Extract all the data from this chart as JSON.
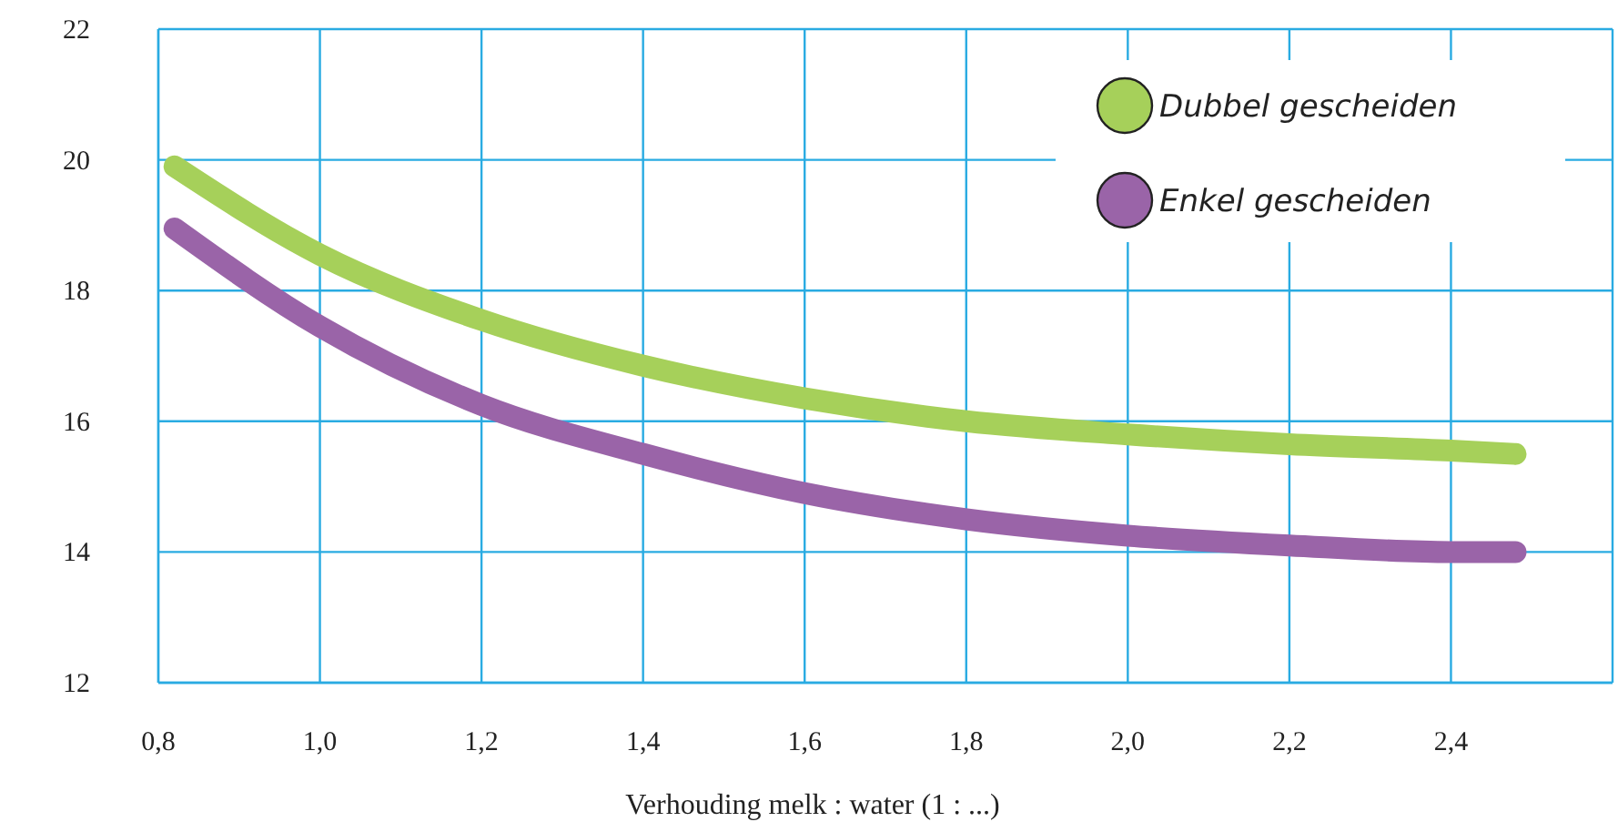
{
  "chart_data": {
    "type": "line",
    "xlabel": "Verhouding melk : water (1 : ...)",
    "xlim": [
      0.8,
      2.6
    ],
    "ylim": [
      12,
      22
    ],
    "xticks": [
      {
        "value": 0.8,
        "label": "0,8"
      },
      {
        "value": 1.0,
        "label": "1,0"
      },
      {
        "value": 1.2,
        "label": "1,2"
      },
      {
        "value": 1.4,
        "label": "1,4"
      },
      {
        "value": 1.6,
        "label": "1,6"
      },
      {
        "value": 1.8,
        "label": "1,8"
      },
      {
        "value": 2.0,
        "label": "2,0"
      },
      {
        "value": 2.2,
        "label": "2,2"
      },
      {
        "value": 2.4,
        "label": "2,4"
      },
      {
        "value": 2.6,
        "label": null
      }
    ],
    "yticks": [
      12,
      14,
      16,
      18,
      20,
      22
    ],
    "x": [
      0.82,
      1.0,
      1.2,
      1.4,
      1.6,
      1.8,
      2.0,
      2.2,
      2.4,
      2.48
    ],
    "series": [
      {
        "name": "Dubbel gescheiden",
        "color": "#a6d05a",
        "values": [
          19.9,
          18.55,
          17.55,
          16.85,
          16.35,
          16.0,
          15.8,
          15.65,
          15.55,
          15.5
        ]
      },
      {
        "name": "Enkel gescheiden",
        "color": "#9a64a8",
        "values": [
          18.95,
          17.45,
          16.25,
          15.5,
          14.9,
          14.5,
          14.25,
          14.1,
          14.0,
          14.0
        ]
      }
    ],
    "grid": true,
    "legend": "top right",
    "line_style": "solid"
  }
}
